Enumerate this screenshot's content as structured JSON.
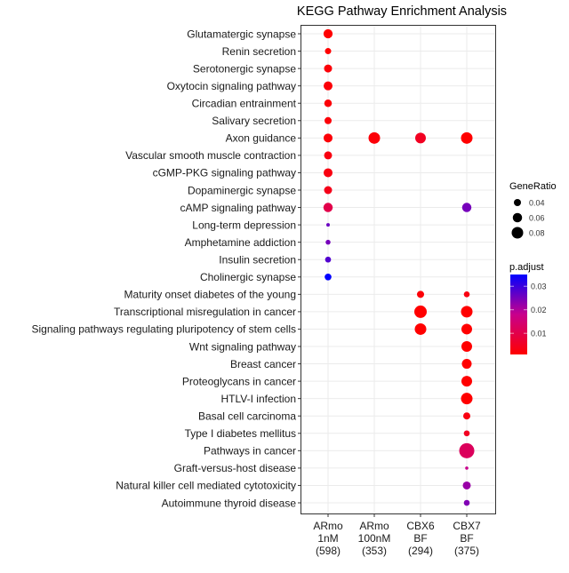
{
  "chart_data": {
    "type": "scatter",
    "title": "KEGG Pathway Enrichment Analysis",
    "xlabel": "",
    "ylabel": "",
    "grid": true,
    "columns": [
      [
        "ARmo",
        "1nM",
        "(598)"
      ],
      [
        "ARmo",
        "100nM",
        "(353)"
      ],
      [
        "CBX6",
        "BF",
        "(294)"
      ],
      [
        "CBX7",
        "BF",
        "(375)"
      ]
    ],
    "rows": [
      {
        "name": "Glutamatergic synapse",
        "points": [
          [
            0,
            0.058,
            0.001
          ]
        ]
      },
      {
        "name": "Renin secretion",
        "points": [
          [
            0,
            0.032,
            0.001
          ]
        ]
      },
      {
        "name": "Serotonergic synapse",
        "points": [
          [
            0,
            0.048,
            0.002
          ]
        ]
      },
      {
        "name": "Oxytocin signaling pathway",
        "points": [
          [
            0,
            0.056,
            0.002
          ]
        ]
      },
      {
        "name": "Circadian entrainment",
        "points": [
          [
            0,
            0.044,
            0.002
          ]
        ]
      },
      {
        "name": "Salivary secretion",
        "points": [
          [
            0,
            0.04,
            0.002
          ]
        ]
      },
      {
        "name": "Axon guidance",
        "points": [
          [
            0,
            0.056,
            0.002
          ],
          [
            1,
            0.08,
            0.002
          ],
          [
            2,
            0.072,
            0.005
          ],
          [
            3,
            0.08,
            0.001
          ]
        ]
      },
      {
        "name": "Vascular smooth muscle contraction",
        "points": [
          [
            0,
            0.048,
            0.003
          ]
        ]
      },
      {
        "name": "cGMP-PKG signaling pathway",
        "points": [
          [
            0,
            0.056,
            0.003
          ]
        ]
      },
      {
        "name": "Dopaminergic synapse",
        "points": [
          [
            0,
            0.048,
            0.004
          ]
        ]
      },
      {
        "name": "cAMP signaling pathway",
        "points": [
          [
            0,
            0.06,
            0.01
          ],
          [
            3,
            0.06,
            0.025
          ]
        ]
      },
      {
        "name": "Long-term depression",
        "points": [
          [
            0,
            0.008,
            0.026
          ]
        ]
      },
      {
        "name": "Amphetamine addiction",
        "points": [
          [
            0,
            0.02,
            0.025
          ]
        ]
      },
      {
        "name": "Insulin secretion",
        "points": [
          [
            0,
            0.029,
            0.028
          ]
        ]
      },
      {
        "name": "Cholinergic synapse",
        "points": [
          [
            0,
            0.037,
            0.035
          ]
        ]
      },
      {
        "name": "Maturity onset diabetes of the young",
        "points": [
          [
            2,
            0.04,
            0.002
          ],
          [
            3,
            0.029,
            0.003
          ]
        ]
      },
      {
        "name": "Transcriptional misregulation in cancer",
        "points": [
          [
            2,
            0.088,
            0.001
          ],
          [
            3,
            0.08,
            0.001
          ]
        ]
      },
      {
        "name": "Signaling pathways regulating pluripotency of stem cells",
        "points": [
          [
            2,
            0.08,
            0.001
          ],
          [
            3,
            0.072,
            0.001
          ]
        ]
      },
      {
        "name": "Wnt signaling pathway",
        "points": [
          [
            3,
            0.072,
            0.001
          ]
        ]
      },
      {
        "name": "Breast cancer",
        "points": [
          [
            3,
            0.064,
            0.001
          ]
        ]
      },
      {
        "name": "Proteoglycans in cancer",
        "points": [
          [
            3,
            0.072,
            0.001
          ]
        ]
      },
      {
        "name": "HTLV-I infection",
        "points": [
          [
            3,
            0.08,
            0.001
          ]
        ]
      },
      {
        "name": "Basal cell carcinoma",
        "points": [
          [
            3,
            0.04,
            0.003
          ]
        ]
      },
      {
        "name": "Type I diabetes mellitus",
        "points": [
          [
            3,
            0.029,
            0.005
          ]
        ]
      },
      {
        "name": "Pathways in cancer",
        "points": [
          [
            3,
            0.112,
            0.012
          ]
        ]
      },
      {
        "name": "Graft-versus-host disease",
        "points": [
          [
            3,
            0.005,
            0.018
          ]
        ]
      },
      {
        "name": "Natural killer cell mediated cytotoxicity",
        "points": [
          [
            3,
            0.048,
            0.022
          ]
        ]
      },
      {
        "name": "Autoimmune thyroid disease",
        "points": [
          [
            3,
            0.029,
            0.024
          ]
        ]
      }
    ],
    "size_legend": {
      "title": "GeneRatio",
      "values": [
        0.04,
        0.06,
        0.08
      ],
      "labels": [
        "0.04",
        "0.06",
        "0.08"
      ]
    },
    "color_legend": {
      "title": "p.adjust",
      "range": [
        0.001,
        0.035
      ],
      "ticks": [
        0.01,
        0.02,
        0.03
      ],
      "labels": [
        "0.01",
        "0.02",
        "0.03"
      ],
      "low_color": "#FF0000",
      "high_color": "#0000FF"
    },
    "legend_placement": "right"
  }
}
